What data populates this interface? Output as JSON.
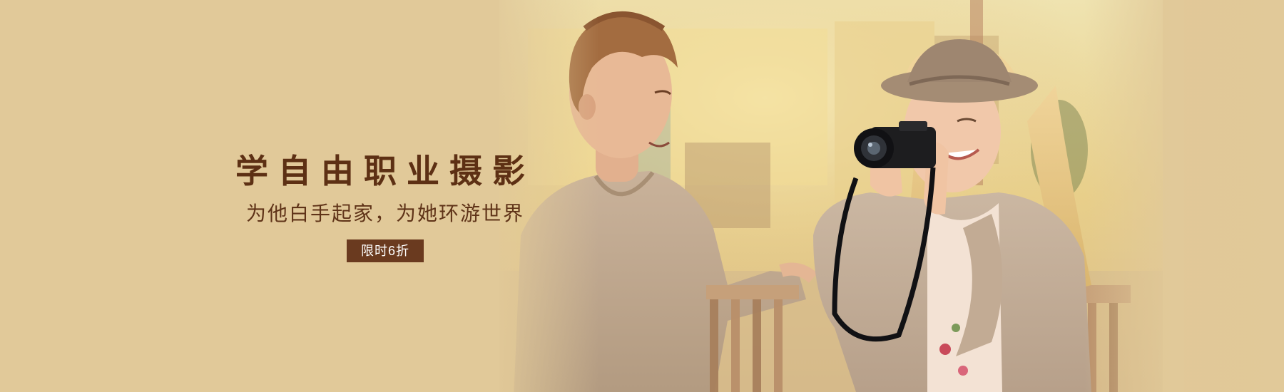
{
  "banner": {
    "headline": "学自由职业摄影",
    "subline": "为他白手起家，为她环游世界",
    "badge": "限时6折",
    "colors": {
      "background": "#e1c999",
      "headline": "#5d3014",
      "badge_bg": "#6a3a1f",
      "badge_text": "#ffffff"
    }
  },
  "photo": {
    "subject": "couple-photography-scene-icon"
  }
}
